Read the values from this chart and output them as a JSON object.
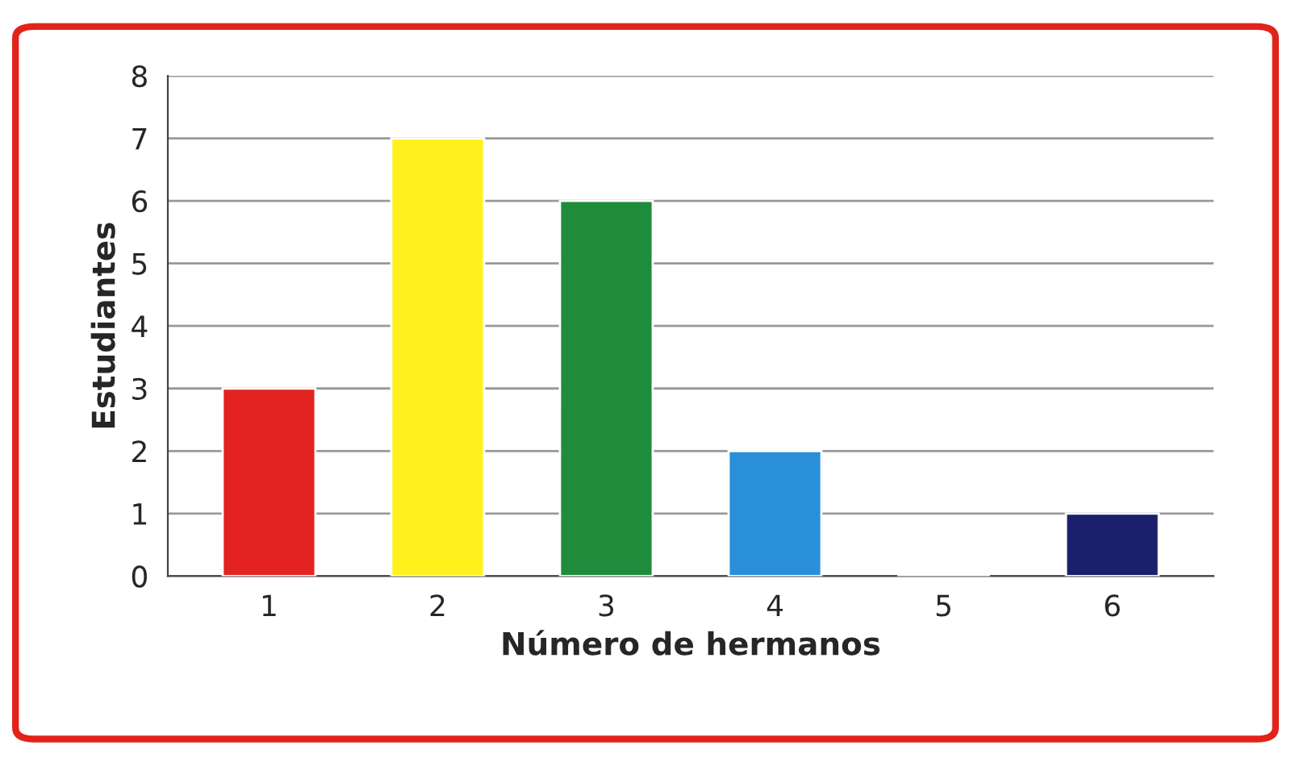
{
  "chart_data": {
    "type": "bar",
    "xlabel": "Número de hermanos",
    "ylabel": "Estudiantes",
    "categories": [
      "1",
      "2",
      "3",
      "4",
      "5",
      "6"
    ],
    "values": [
      3,
      7,
      6,
      2,
      0,
      1
    ],
    "colors": [
      "#e3231f",
      "#fff21c",
      "#1f8c3b",
      "#2a8fd9",
      "#f0f0f0",
      "#1c1f6b"
    ],
    "ylim": [
      0,
      8
    ],
    "yticks": [
      0,
      1,
      2,
      3,
      4,
      5,
      6,
      7,
      8
    ],
    "grid": "y"
  }
}
